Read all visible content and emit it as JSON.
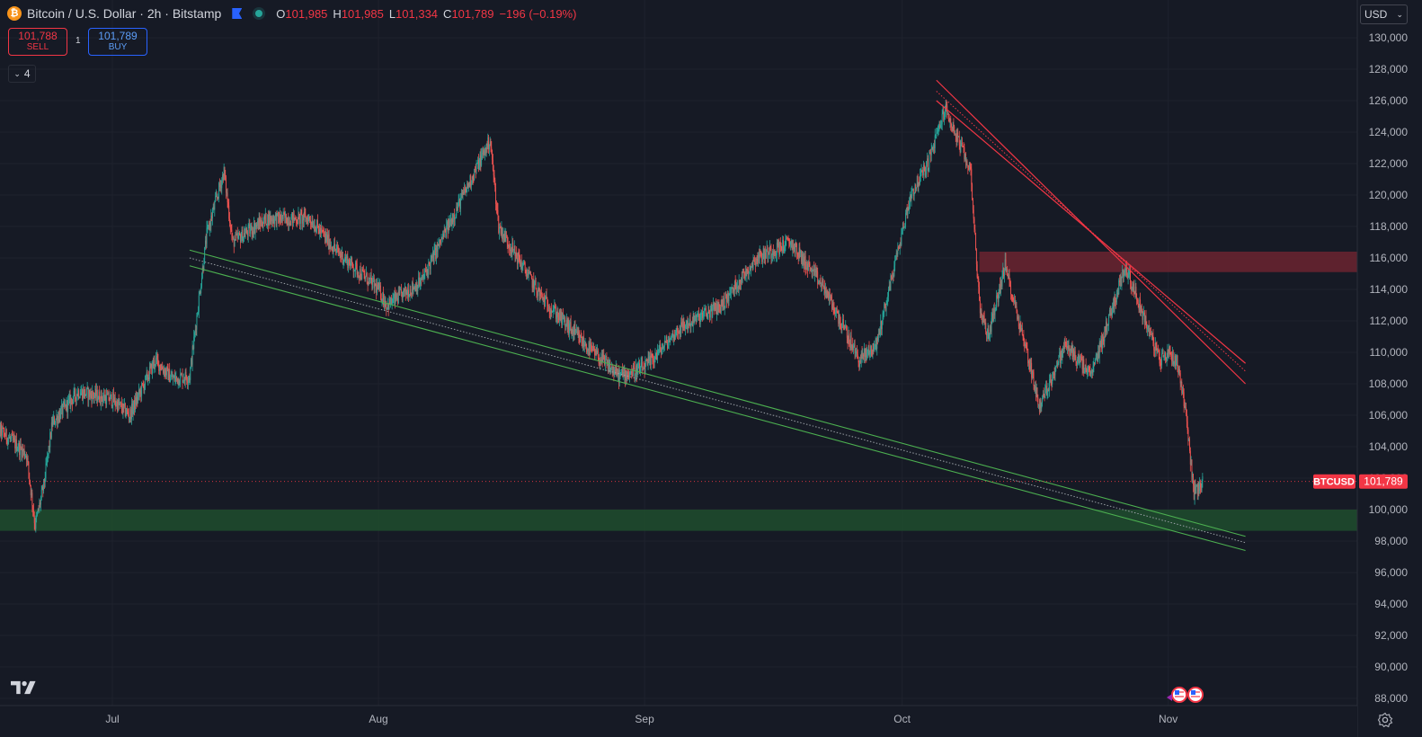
{
  "header": {
    "logo_letter": "₿",
    "symbol_title": "Bitcoin / U.S. Dollar · 2h · Bitstamp",
    "ohlc": {
      "o_label": "O",
      "o_value": "101,985",
      "h_label": "H",
      "h_value": "101,985",
      "l_label": "L",
      "l_value": "101,334",
      "c_label": "C",
      "c_value": "101,789",
      "change": "−196 (−0.19%)"
    }
  },
  "trade": {
    "sell_price": "101,788",
    "sell_label": "SELL",
    "spread": "1",
    "buy_price": "101,789",
    "buy_label": "BUY"
  },
  "indicators_count": "4",
  "currency": "USD",
  "price_tag": {
    "symbol": "BTCUSD",
    "price": "101,789"
  },
  "colors": {
    "background": "#161a25",
    "grid": "#1e222d",
    "up": "#26a69a",
    "down": "#ef5350",
    "resistance_line": "#f23645",
    "support_line": "#4caf50",
    "support_zone": "#1e4a2e",
    "resistance_zone": "#6b2530"
  },
  "icons": [
    "bitcoin-logo-icon",
    "flag-icon",
    "status-dot-icon",
    "chevron-down-icon",
    "tradingview-logo-icon",
    "settings-icon",
    "us-flag-event-icon"
  ],
  "chart_data": {
    "type": "candlestick",
    "instrument": "Bitcoin / U.S. Dollar",
    "interval": "2h",
    "exchange": "Bitstamp",
    "y_ticks": [
      130000,
      128000,
      126000,
      124000,
      122000,
      120000,
      118000,
      116000,
      114000,
      112000,
      110000,
      108000,
      106000,
      104000,
      102000,
      100000,
      98000,
      96000,
      94000,
      92000,
      90000,
      88000
    ],
    "y_tick_labels": [
      "130,000",
      "128,000",
      "126,000",
      "124,000",
      "122,000",
      "120,000",
      "118,000",
      "116,000",
      "114,000",
      "112,000",
      "110,000",
      "108,000",
      "106,000",
      "104,000",
      "102,000",
      "100,000",
      "98,000",
      "96,000",
      "94,000",
      "92,000",
      "90,000",
      "88,000"
    ],
    "x_ticks": [
      {
        "date": "2025-07-01",
        "label": "Jul"
      },
      {
        "date": "2025-08-01",
        "label": "Aug"
      },
      {
        "date": "2025-09-01",
        "label": "Sep"
      },
      {
        "date": "2025-10-01",
        "label": "Oct"
      },
      {
        "date": "2025-11-01",
        "label": "Nov"
      }
    ],
    "last_price": 101789,
    "price_path": [
      {
        "date": "2025-06-17",
        "price": 105500
      },
      {
        "date": "2025-06-21",
        "price": 103500
      },
      {
        "date": "2025-06-22",
        "price": 99000
      },
      {
        "date": "2025-06-23",
        "price": 101500
      },
      {
        "date": "2025-06-24",
        "price": 105500
      },
      {
        "date": "2025-06-27",
        "price": 107500
      },
      {
        "date": "2025-07-01",
        "price": 107000
      },
      {
        "date": "2025-07-03",
        "price": 106000
      },
      {
        "date": "2025-07-06",
        "price": 109500
      },
      {
        "date": "2025-07-08",
        "price": 108300
      },
      {
        "date": "2025-07-10",
        "price": 108500
      },
      {
        "date": "2025-07-12",
        "price": 117500
      },
      {
        "date": "2025-07-14",
        "price": 121500
      },
      {
        "date": "2025-07-15",
        "price": 117000
      },
      {
        "date": "2025-07-19",
        "price": 118500
      },
      {
        "date": "2025-07-24",
        "price": 118500
      },
      {
        "date": "2025-07-27",
        "price": 116500
      },
      {
        "date": "2025-08-01",
        "price": 114000
      },
      {
        "date": "2025-08-02",
        "price": 113000
      },
      {
        "date": "2025-08-06",
        "price": 114500
      },
      {
        "date": "2025-08-10",
        "price": 119000
      },
      {
        "date": "2025-08-14",
        "price": 123500
      },
      {
        "date": "2025-08-15",
        "price": 118000
      },
      {
        "date": "2025-08-20",
        "price": 113500
      },
      {
        "date": "2025-08-25",
        "price": 110500
      },
      {
        "date": "2025-08-29",
        "price": 108500
      },
      {
        "date": "2025-09-01",
        "price": 109000
      },
      {
        "date": "2025-09-05",
        "price": 111500
      },
      {
        "date": "2025-09-10",
        "price": 113000
      },
      {
        "date": "2025-09-14",
        "price": 116000
      },
      {
        "date": "2025-09-18",
        "price": 117000
      },
      {
        "date": "2025-09-22",
        "price": 114000
      },
      {
        "date": "2025-09-26",
        "price": 109500
      },
      {
        "date": "2025-09-28",
        "price": 110500
      },
      {
        "date": "2025-10-02",
        "price": 120000
      },
      {
        "date": "2025-10-04",
        "price": 122000
      },
      {
        "date": "2025-10-06",
        "price": 125500
      },
      {
        "date": "2025-10-09",
        "price": 121500
      },
      {
        "date": "2025-10-10",
        "price": 113000
      },
      {
        "date": "2025-10-11",
        "price": 111000
      },
      {
        "date": "2025-10-13",
        "price": 115500
      },
      {
        "date": "2025-10-16",
        "price": 109000
      },
      {
        "date": "2025-10-17",
        "price": 106500
      },
      {
        "date": "2025-10-20",
        "price": 110500
      },
      {
        "date": "2025-10-23",
        "price": 108500
      },
      {
        "date": "2025-10-27",
        "price": 115500
      },
      {
        "date": "2025-10-29",
        "price": 112500
      },
      {
        "date": "2025-10-31",
        "price": 109500
      },
      {
        "date": "2025-11-01",
        "price": 110000
      },
      {
        "date": "2025-11-02",
        "price": 109500
      },
      {
        "date": "2025-11-03",
        "price": 106500
      },
      {
        "date": "2025-11-04",
        "price": 101000
      },
      {
        "date": "2025-11-05",
        "price": 101789
      }
    ],
    "drawings": {
      "resistance_channel": [
        {
          "from": {
            "date": "2025-10-05",
            "price": 127300
          },
          "to": {
            "date": "2025-11-10",
            "price": 108000
          }
        },
        {
          "from": {
            "date": "2025-10-05",
            "price": 126600
          },
          "to": {
            "date": "2025-11-10",
            "price": 108800
          },
          "dotted": true
        },
        {
          "from": {
            "date": "2025-10-05",
            "price": 126000
          },
          "to": {
            "date": "2025-11-10",
            "price": 109300
          }
        }
      ],
      "support_channel": [
        {
          "from": {
            "date": "2025-07-10",
            "price": 116500
          },
          "to": {
            "date": "2025-11-10",
            "price": 98300
          }
        },
        {
          "from": {
            "date": "2025-07-10",
            "price": 116000
          },
          "to": {
            "date": "2025-11-10",
            "price": 97900
          },
          "dotted": true
        },
        {
          "from": {
            "date": "2025-07-10",
            "price": 115500
          },
          "to": {
            "date": "2025-11-10",
            "price": 97400
          }
        }
      ],
      "support_zone": {
        "price_top": 100000,
        "price_bottom": 98650
      },
      "resistance_zone": {
        "date_start": "2025-10-10",
        "price_top": 116400,
        "price_bottom": 115100
      }
    }
  }
}
